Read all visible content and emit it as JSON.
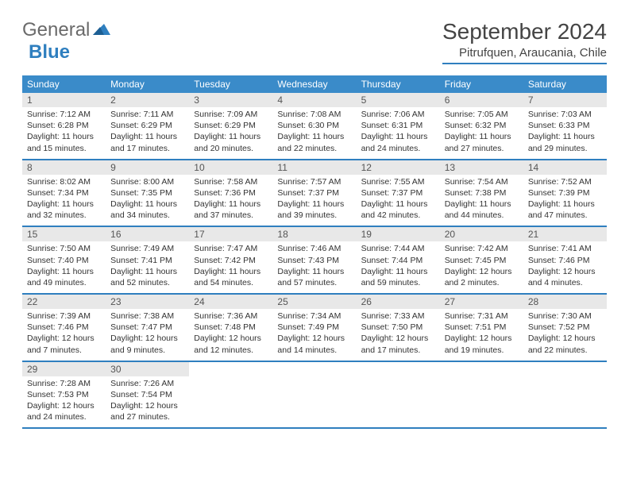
{
  "logo": {
    "gray": "General",
    "blue": "Blue"
  },
  "title": "September 2024",
  "location": "Pitrufquen, Araucania, Chile",
  "colors": {
    "header_bg": "#3a8bc9",
    "accent_border": "#2f7fbf",
    "daynum_bg": "#e8e8e8",
    "text": "#333333",
    "logo_gray": "#6a6a6a",
    "logo_blue": "#2f7fbf",
    "page_bg": "#ffffff"
  },
  "dow": [
    "Sunday",
    "Monday",
    "Tuesday",
    "Wednesday",
    "Thursday",
    "Friday",
    "Saturday"
  ],
  "weeks": [
    [
      {
        "n": "1",
        "sr": "Sunrise: 7:12 AM",
        "ss": "Sunset: 6:28 PM",
        "d1": "Daylight: 11 hours",
        "d2": "and 15 minutes."
      },
      {
        "n": "2",
        "sr": "Sunrise: 7:11 AM",
        "ss": "Sunset: 6:29 PM",
        "d1": "Daylight: 11 hours",
        "d2": "and 17 minutes."
      },
      {
        "n": "3",
        "sr": "Sunrise: 7:09 AM",
        "ss": "Sunset: 6:29 PM",
        "d1": "Daylight: 11 hours",
        "d2": "and 20 minutes."
      },
      {
        "n": "4",
        "sr": "Sunrise: 7:08 AM",
        "ss": "Sunset: 6:30 PM",
        "d1": "Daylight: 11 hours",
        "d2": "and 22 minutes."
      },
      {
        "n": "5",
        "sr": "Sunrise: 7:06 AM",
        "ss": "Sunset: 6:31 PM",
        "d1": "Daylight: 11 hours",
        "d2": "and 24 minutes."
      },
      {
        "n": "6",
        "sr": "Sunrise: 7:05 AM",
        "ss": "Sunset: 6:32 PM",
        "d1": "Daylight: 11 hours",
        "d2": "and 27 minutes."
      },
      {
        "n": "7",
        "sr": "Sunrise: 7:03 AM",
        "ss": "Sunset: 6:33 PM",
        "d1": "Daylight: 11 hours",
        "d2": "and 29 minutes."
      }
    ],
    [
      {
        "n": "8",
        "sr": "Sunrise: 8:02 AM",
        "ss": "Sunset: 7:34 PM",
        "d1": "Daylight: 11 hours",
        "d2": "and 32 minutes."
      },
      {
        "n": "9",
        "sr": "Sunrise: 8:00 AM",
        "ss": "Sunset: 7:35 PM",
        "d1": "Daylight: 11 hours",
        "d2": "and 34 minutes."
      },
      {
        "n": "10",
        "sr": "Sunrise: 7:58 AM",
        "ss": "Sunset: 7:36 PM",
        "d1": "Daylight: 11 hours",
        "d2": "and 37 minutes."
      },
      {
        "n": "11",
        "sr": "Sunrise: 7:57 AM",
        "ss": "Sunset: 7:37 PM",
        "d1": "Daylight: 11 hours",
        "d2": "and 39 minutes."
      },
      {
        "n": "12",
        "sr": "Sunrise: 7:55 AM",
        "ss": "Sunset: 7:37 PM",
        "d1": "Daylight: 11 hours",
        "d2": "and 42 minutes."
      },
      {
        "n": "13",
        "sr": "Sunrise: 7:54 AM",
        "ss": "Sunset: 7:38 PM",
        "d1": "Daylight: 11 hours",
        "d2": "and 44 minutes."
      },
      {
        "n": "14",
        "sr": "Sunrise: 7:52 AM",
        "ss": "Sunset: 7:39 PM",
        "d1": "Daylight: 11 hours",
        "d2": "and 47 minutes."
      }
    ],
    [
      {
        "n": "15",
        "sr": "Sunrise: 7:50 AM",
        "ss": "Sunset: 7:40 PM",
        "d1": "Daylight: 11 hours",
        "d2": "and 49 minutes."
      },
      {
        "n": "16",
        "sr": "Sunrise: 7:49 AM",
        "ss": "Sunset: 7:41 PM",
        "d1": "Daylight: 11 hours",
        "d2": "and 52 minutes."
      },
      {
        "n": "17",
        "sr": "Sunrise: 7:47 AM",
        "ss": "Sunset: 7:42 PM",
        "d1": "Daylight: 11 hours",
        "d2": "and 54 minutes."
      },
      {
        "n": "18",
        "sr": "Sunrise: 7:46 AM",
        "ss": "Sunset: 7:43 PM",
        "d1": "Daylight: 11 hours",
        "d2": "and 57 minutes."
      },
      {
        "n": "19",
        "sr": "Sunrise: 7:44 AM",
        "ss": "Sunset: 7:44 PM",
        "d1": "Daylight: 11 hours",
        "d2": "and 59 minutes."
      },
      {
        "n": "20",
        "sr": "Sunrise: 7:42 AM",
        "ss": "Sunset: 7:45 PM",
        "d1": "Daylight: 12 hours",
        "d2": "and 2 minutes."
      },
      {
        "n": "21",
        "sr": "Sunrise: 7:41 AM",
        "ss": "Sunset: 7:46 PM",
        "d1": "Daylight: 12 hours",
        "d2": "and 4 minutes."
      }
    ],
    [
      {
        "n": "22",
        "sr": "Sunrise: 7:39 AM",
        "ss": "Sunset: 7:46 PM",
        "d1": "Daylight: 12 hours",
        "d2": "and 7 minutes."
      },
      {
        "n": "23",
        "sr": "Sunrise: 7:38 AM",
        "ss": "Sunset: 7:47 PM",
        "d1": "Daylight: 12 hours",
        "d2": "and 9 minutes."
      },
      {
        "n": "24",
        "sr": "Sunrise: 7:36 AM",
        "ss": "Sunset: 7:48 PM",
        "d1": "Daylight: 12 hours",
        "d2": "and 12 minutes."
      },
      {
        "n": "25",
        "sr": "Sunrise: 7:34 AM",
        "ss": "Sunset: 7:49 PM",
        "d1": "Daylight: 12 hours",
        "d2": "and 14 minutes."
      },
      {
        "n": "26",
        "sr": "Sunrise: 7:33 AM",
        "ss": "Sunset: 7:50 PM",
        "d1": "Daylight: 12 hours",
        "d2": "and 17 minutes."
      },
      {
        "n": "27",
        "sr": "Sunrise: 7:31 AM",
        "ss": "Sunset: 7:51 PM",
        "d1": "Daylight: 12 hours",
        "d2": "and 19 minutes."
      },
      {
        "n": "28",
        "sr": "Sunrise: 7:30 AM",
        "ss": "Sunset: 7:52 PM",
        "d1": "Daylight: 12 hours",
        "d2": "and 22 minutes."
      }
    ],
    [
      {
        "n": "29",
        "sr": "Sunrise: 7:28 AM",
        "ss": "Sunset: 7:53 PM",
        "d1": "Daylight: 12 hours",
        "d2": "and 24 minutes."
      },
      {
        "n": "30",
        "sr": "Sunrise: 7:26 AM",
        "ss": "Sunset: 7:54 PM",
        "d1": "Daylight: 12 hours",
        "d2": "and 27 minutes."
      },
      null,
      null,
      null,
      null,
      null
    ]
  ]
}
